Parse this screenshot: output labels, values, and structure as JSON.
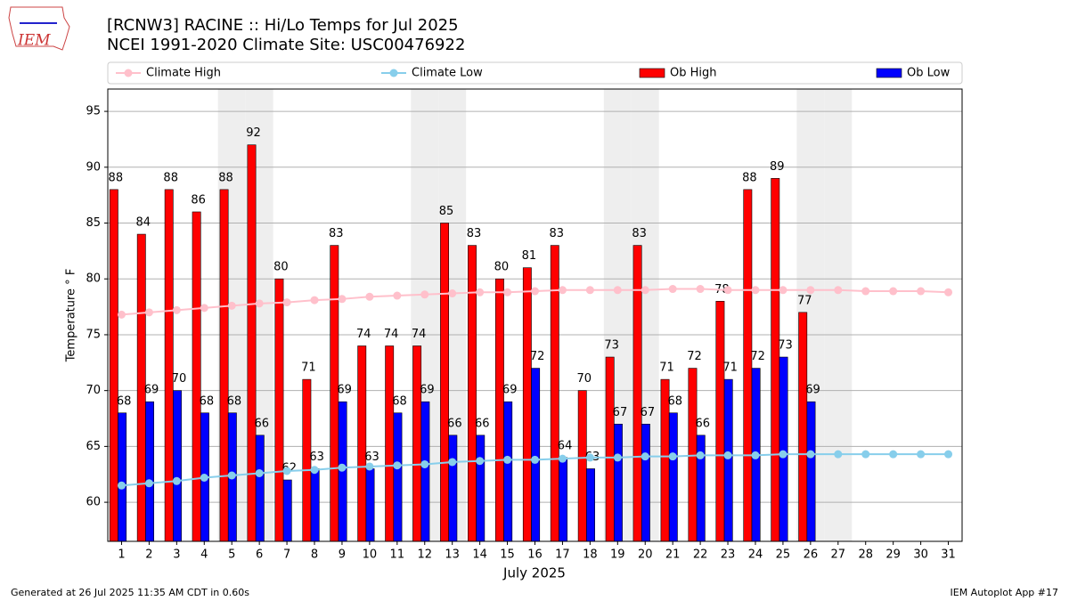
{
  "chart_data": {
    "type": "bar",
    "logo_text": "IEM",
    "title": "[RCNW3] RACINE :: Hi/Lo Temps for Jul 2025",
    "subtitle": "NCEI 1991-2020 Climate Site: USC00476922",
    "ylabel": "Temperature ° F",
    "xlabel": "July 2025",
    "footer_left": "Generated at 26 Jul 2025 11:35 AM CDT in 0.60s",
    "footer_right": "IEM Autoplot App #17",
    "categories": [
      "1",
      "2",
      "3",
      "4",
      "5",
      "6",
      "7",
      "8",
      "9",
      "10",
      "11",
      "12",
      "13",
      "14",
      "15",
      "16",
      "17",
      "18",
      "19",
      "20",
      "21",
      "22",
      "23",
      "24",
      "25",
      "26",
      "27",
      "28",
      "29",
      "30",
      "31"
    ],
    "shaded_days": [
      "5",
      "6",
      "12",
      "13",
      "19",
      "20",
      "26",
      "27"
    ],
    "ylim": [
      56.5,
      97
    ],
    "yticks": [
      60,
      65,
      70,
      75,
      80,
      85,
      90,
      95
    ],
    "grid": true,
    "series": [
      {
        "name": "Climate High",
        "kind": "line",
        "color": "#ffc0cb",
        "values": [
          76.8,
          77.0,
          77.2,
          77.4,
          77.6,
          77.8,
          77.9,
          78.1,
          78.2,
          78.4,
          78.5,
          78.6,
          78.7,
          78.8,
          78.8,
          78.9,
          79.0,
          79.0,
          79.0,
          79.0,
          79.1,
          79.1,
          79.0,
          79.0,
          79.0,
          79.0,
          79.0,
          78.9,
          78.9,
          78.9,
          78.8
        ]
      },
      {
        "name": "Climate Low",
        "kind": "line",
        "color": "#87ceeb",
        "values": [
          61.5,
          61.7,
          61.9,
          62.2,
          62.4,
          62.6,
          62.8,
          62.9,
          63.1,
          63.2,
          63.3,
          63.4,
          63.6,
          63.7,
          63.8,
          63.8,
          63.9,
          64.0,
          64.0,
          64.1,
          64.1,
          64.2,
          64.2,
          64.2,
          64.3,
          64.3,
          64.3,
          64.3,
          64.3,
          64.3,
          64.3
        ]
      },
      {
        "name": "Ob High",
        "kind": "bar",
        "color": "#ff0000",
        "values": [
          88,
          84,
          88,
          86,
          88,
          92,
          80,
          71,
          83,
          74,
          74,
          74,
          85,
          83,
          80,
          81,
          83,
          70,
          73,
          83,
          71,
          72,
          78,
          88,
          89,
          77,
          null,
          null,
          null,
          null,
          null
        ]
      },
      {
        "name": "Ob Low",
        "kind": "bar",
        "color": "#0000ff",
        "values": [
          68,
          69,
          70,
          68,
          68,
          66,
          62,
          63,
          69,
          63,
          68,
          69,
          66,
          66,
          69,
          72,
          64,
          63,
          67,
          67,
          68,
          66,
          71,
          72,
          73,
          69,
          null,
          null,
          null,
          null,
          null
        ]
      }
    ]
  }
}
